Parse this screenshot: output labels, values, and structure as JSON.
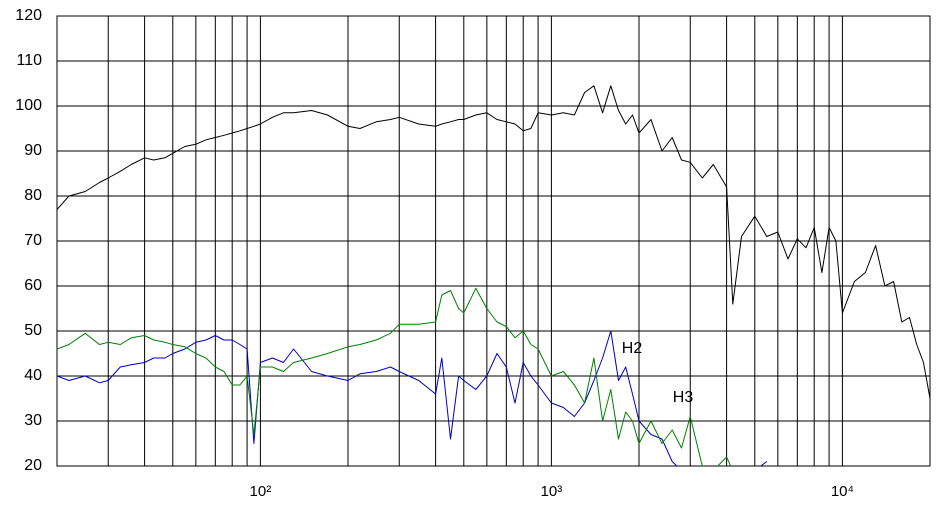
{
  "chart_data": {
    "type": "line",
    "x": [
      20,
      22,
      25,
      28,
      30,
      33,
      36,
      40,
      43,
      47,
      50,
      55,
      60,
      65,
      70,
      75,
      80,
      85,
      90,
      95,
      100,
      110,
      120,
      130,
      150,
      170,
      200,
      220,
      250,
      280,
      300,
      350,
      400,
      420,
      450,
      480,
      500,
      550,
      600,
      650,
      700,
      750,
      800,
      850,
      900,
      1000,
      1100,
      1200,
      1300,
      1400,
      1500,
      1600,
      1700,
      1800,
      1900,
      2000,
      2200,
      2400,
      2600,
      2800,
      3000,
      3300,
      3600,
      4000,
      4200,
      4500,
      5000,
      5500,
      6000,
      6500,
      7000,
      7500,
      8000,
      8500,
      9000,
      9500,
      10000,
      11000,
      12000,
      13000,
      14000,
      15000,
      16000,
      17000,
      18000,
      19000,
      20000
    ],
    "series": [
      {
        "color": "#000000",
        "values": [
          77,
          80,
          81,
          83,
          84,
          85.5,
          87,
          88.5,
          88,
          88.5,
          89.5,
          91,
          91.5,
          92.5,
          93,
          93.5,
          94,
          94.5,
          95,
          95.5,
          96,
          97.5,
          98.5,
          98.5,
          99,
          98,
          95.5,
          95,
          96.5,
          97,
          97.5,
          96,
          95.5,
          96,
          96.5,
          97,
          97,
          98,
          98.5,
          97,
          96.5,
          96,
          94.5,
          95,
          98.5,
          98,
          98.5,
          98,
          103,
          104.5,
          98.5,
          104.5,
          99,
          96,
          98,
          94,
          97,
          90,
          93,
          88,
          87.5,
          84,
          87,
          82,
          56,
          71,
          75.5,
          71,
          72,
          66,
          70.5,
          68.5,
          73,
          63,
          73,
          70,
          54,
          61,
          63,
          69,
          60,
          61,
          52,
          53,
          47,
          43,
          35
        ]
      },
      {
        "color": "#0000c0",
        "values": [
          40,
          39,
          40,
          38.5,
          39,
          42,
          42.5,
          43,
          44,
          44,
          45,
          46,
          47.5,
          48,
          49,
          48,
          48,
          47,
          46,
          25,
          43,
          44,
          43,
          46,
          41,
          40,
          39,
          40.5,
          41,
          42,
          41,
          39,
          36,
          44,
          26,
          40,
          39,
          37,
          40,
          45,
          42,
          34,
          43,
          40,
          38,
          34,
          33,
          31,
          34,
          39,
          44,
          50,
          39,
          42,
          36,
          30,
          27,
          26,
          21,
          19,
          18,
          null,
          null,
          null,
          null,
          null,
          19,
          21,
          null,
          null,
          null,
          null,
          null,
          null,
          null,
          null,
          null,
          null,
          null,
          null,
          null,
          null,
          null,
          null,
          null,
          null,
          null
        ]
      },
      {
        "color": "#008000",
        "values": [
          46,
          47,
          49.5,
          47,
          47.5,
          47,
          48.5,
          49,
          48,
          47.5,
          47,
          46.5,
          45,
          44,
          42,
          41,
          38,
          38,
          40,
          27,
          42,
          42,
          41,
          43,
          44,
          45,
          46.5,
          47,
          48,
          49.5,
          51.5,
          51.5,
          52,
          58,
          59,
          55,
          54,
          59.5,
          55,
          52,
          51,
          48.5,
          50,
          47,
          46,
          40,
          41,
          38,
          34,
          44,
          30,
          37,
          26,
          32,
          30,
          25,
          30,
          25,
          28,
          24,
          31,
          20,
          19,
          22,
          19,
          null,
          null,
          null,
          null,
          null,
          null,
          null,
          null,
          null,
          null,
          null,
          null,
          null,
          null,
          null,
          null,
          null,
          null,
          null,
          null,
          null,
          null
        ]
      }
    ],
    "annotations": [
      {
        "text": "H2"
      },
      {
        "text": "H3"
      }
    ],
    "xscale": "log",
    "xlim": [
      20,
      20000
    ],
    "xticks": [
      {
        "value": 100,
        "label": "10²"
      },
      {
        "value": 1000,
        "label": "10³"
      },
      {
        "value": 10000,
        "label": "10⁴"
      }
    ],
    "x_minor_ticks": [
      30,
      40,
      50,
      60,
      70,
      80,
      90,
      200,
      300,
      400,
      500,
      600,
      700,
      800,
      900,
      2000,
      3000,
      4000,
      5000,
      6000,
      7000,
      8000,
      9000
    ],
    "ylim": [
      20,
      120
    ],
    "yticks": [
      20,
      30,
      40,
      50,
      60,
      70,
      80,
      90,
      100,
      110,
      120
    ],
    "grid": true
  }
}
